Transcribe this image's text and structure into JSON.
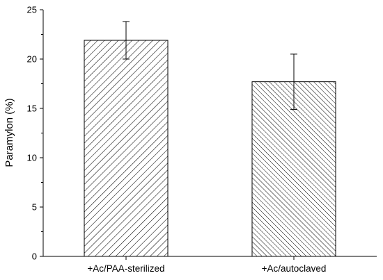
{
  "chart_data": {
    "type": "bar",
    "categories": [
      "+Ac/PAA-sterilized",
      "+Ac/autoclaved"
    ],
    "series": [
      {
        "values": [
          21.9,
          17.7
        ],
        "errors": [
          1.9,
          2.8
        ],
        "patterns": [
          "diagonal-forward",
          "diagonal-backward"
        ]
      }
    ],
    "xlabel": "",
    "ylabel": "Paramylon (%)",
    "ylim": [
      0,
      25
    ],
    "yticks": [
      0,
      5,
      10,
      15,
      20,
      25
    ],
    "yticks_minor": [
      2.5,
      7.5,
      12.5,
      17.5,
      22.5
    ],
    "grid": false,
    "legend": "none",
    "colors": {
      "bar_fill": "#ffffff",
      "hatch": "#000000",
      "axis": "#000000"
    }
  }
}
